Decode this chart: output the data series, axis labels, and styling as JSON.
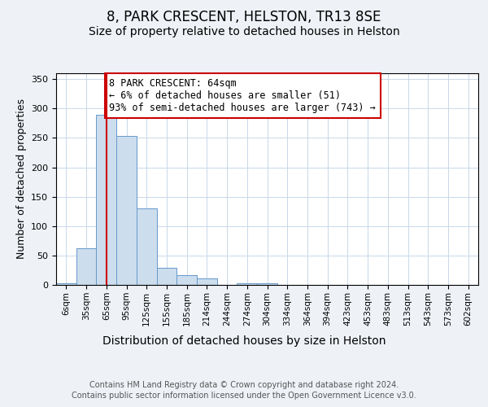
{
  "title1": "8, PARK CRESCENT, HELSTON, TR13 8SE",
  "title2": "Size of property relative to detached houses in Helston",
  "xlabel": "Distribution of detached houses by size in Helston",
  "ylabel": "Number of detached properties",
  "footnote1": "Contains HM Land Registry data © Crown copyright and database right 2024.",
  "footnote2": "Contains public sector information licensed under the Open Government Licence v3.0.",
  "bin_labels": [
    "6sqm",
    "35sqm",
    "65sqm",
    "95sqm",
    "125sqm",
    "155sqm",
    "185sqm",
    "214sqm",
    "244sqm",
    "274sqm",
    "304sqm",
    "334sqm",
    "364sqm",
    "394sqm",
    "423sqm",
    "453sqm",
    "483sqm",
    "513sqm",
    "543sqm",
    "573sqm",
    "602sqm"
  ],
  "bar_values": [
    3,
    62,
    290,
    253,
    130,
    29,
    17,
    11,
    0,
    3,
    3,
    0,
    0,
    0,
    0,
    0,
    0,
    0,
    0,
    0,
    0
  ],
  "bar_color": "#ccdded",
  "bar_edge_color": "#6699cc",
  "property_line_index": 2,
  "property_line_color": "#cc0000",
  "annotation_text": "8 PARK CRESCENT: 64sqm\n← 6% of detached houses are smaller (51)\n93% of semi-detached houses are larger (743) →",
  "annotation_box_color": "#ffffff",
  "annotation_box_edge_color": "#cc0000",
  "ylim": [
    0,
    360
  ],
  "yticks": [
    0,
    50,
    100,
    150,
    200,
    250,
    300,
    350
  ],
  "background_color": "#eef2f7",
  "plot_background": "#ffffff",
  "grid_color": "#c8d8e8",
  "title1_fontsize": 12,
  "title2_fontsize": 10,
  "xlabel_fontsize": 10,
  "ylabel_fontsize": 9,
  "tick_fontsize": 7.5,
  "annotation_fontsize": 8.5,
  "footnote_fontsize": 7
}
